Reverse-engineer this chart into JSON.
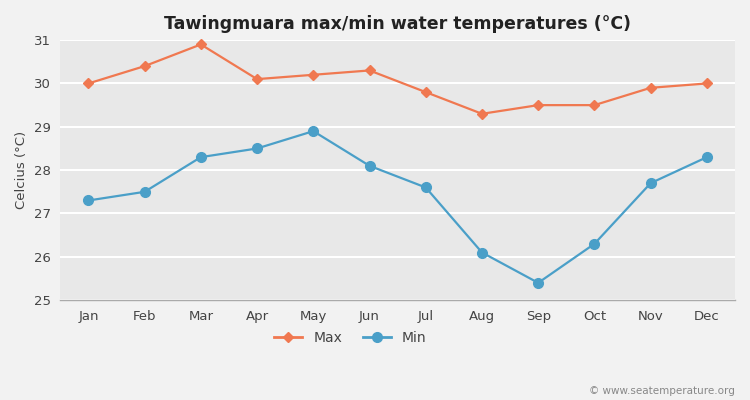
{
  "title": "Tawingmuara max/min water temperatures (°C)",
  "ylabel": "Celcius (°C)",
  "months": [
    "Jan",
    "Feb",
    "Mar",
    "Apr",
    "May",
    "Jun",
    "Jul",
    "Aug",
    "Sep",
    "Oct",
    "Nov",
    "Dec"
  ],
  "max_values": [
    30.0,
    30.4,
    30.9,
    30.1,
    30.2,
    30.3,
    29.8,
    29.3,
    29.5,
    29.5,
    29.9,
    30.0
  ],
  "min_values": [
    27.3,
    27.5,
    28.3,
    28.5,
    28.9,
    28.1,
    27.6,
    26.1,
    25.4,
    26.3,
    27.7,
    28.3
  ],
  "max_color": "#f07850",
  "min_color": "#4a9fc8",
  "ylim": [
    25,
    31
  ],
  "yticks": [
    25,
    26,
    27,
    28,
    29,
    30,
    31
  ],
  "fig_bg_color": "#f2f2f2",
  "plot_bg_color": "#e8e8e8",
  "grid_color": "#ffffff",
  "watermark": "© www.seatemperature.org",
  "legend_labels": [
    "Max",
    "Min"
  ],
  "spine_color": "#aaaaaa"
}
